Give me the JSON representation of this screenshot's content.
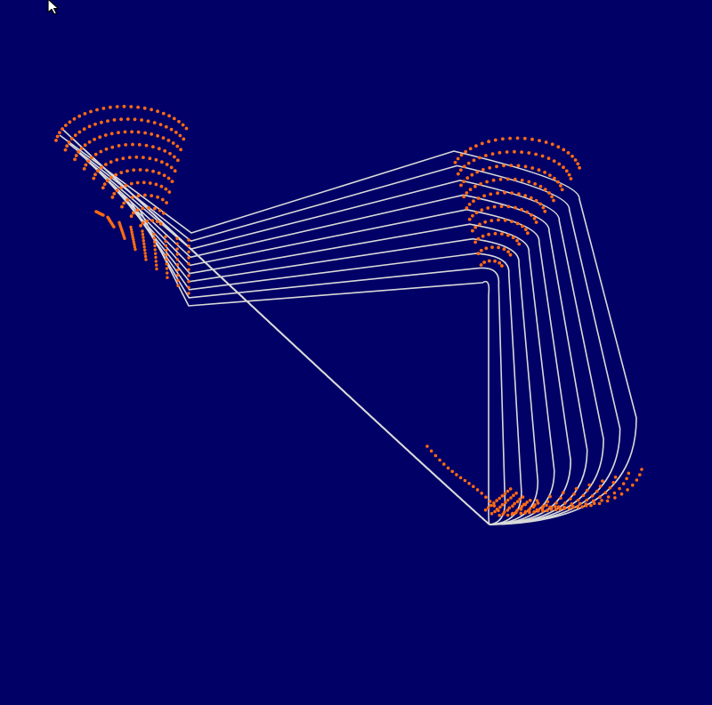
{
  "scene": {
    "background_color": "#000066",
    "strand_color": "#d9d9d9",
    "dot_color": "#ff6a13",
    "strand_count": 10
  },
  "cursor": {
    "icon": "arrow-cursor-icon"
  }
}
